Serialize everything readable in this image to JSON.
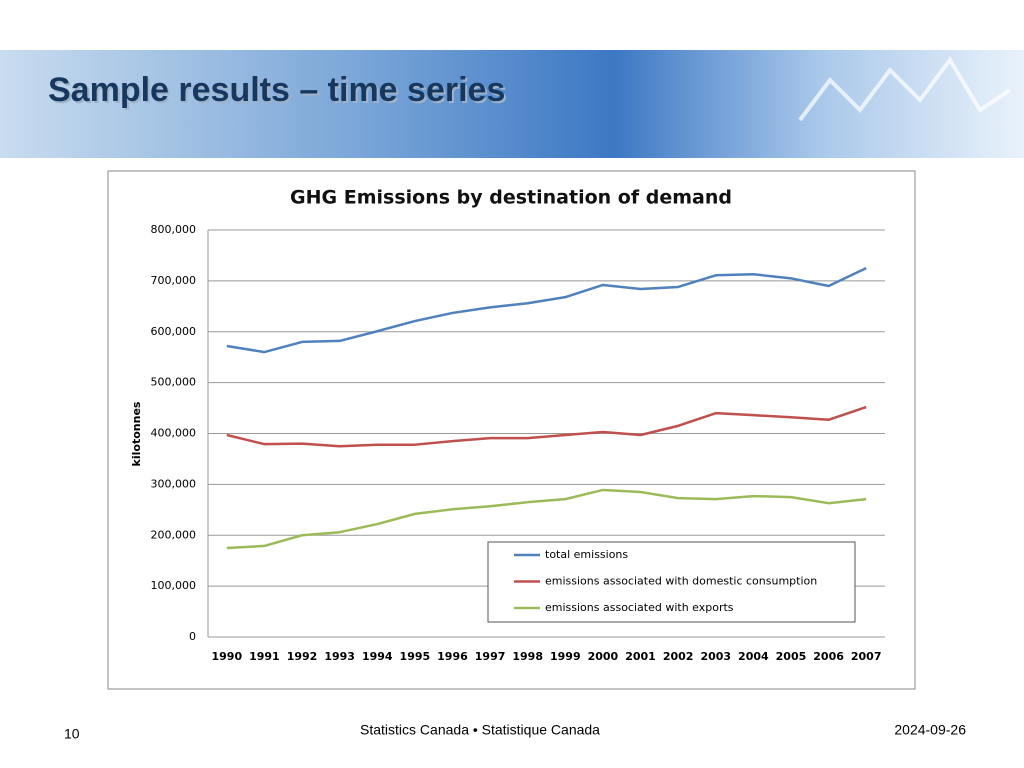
{
  "slide": {
    "title": "Sample results – time series",
    "page_number": "10",
    "footer": "Statistics Canada • Statistique Canada",
    "date": "2024-09-26"
  },
  "chart_data": {
    "type": "line",
    "title": "GHG Emissions by destination of demand",
    "y_label": "kilotonnes",
    "categories": [
      "1990",
      "1991",
      "1992",
      "1993",
      "1994",
      "1995",
      "1996",
      "1997",
      "1998",
      "1999",
      "2000",
      "2001",
      "2002",
      "2003",
      "2004",
      "2005",
      "2006",
      "2007"
    ],
    "series": [
      {
        "name": "total emissions",
        "color": "#4f81bd",
        "values": [
          572000,
          560000,
          580000,
          582000,
          601000,
          621000,
          637000,
          648000,
          656000,
          668000,
          692000,
          684000,
          688000,
          711000,
          713000,
          705000,
          690000,
          725000
        ]
      },
      {
        "name": "emissions associated with domestic consumption",
        "color": "#c0504d",
        "values": [
          397000,
          379000,
          380000,
          375000,
          378000,
          378000,
          385000,
          391000,
          391000,
          397000,
          403000,
          397000,
          415000,
          440000,
          436000,
          432000,
          427000,
          452000
        ]
      },
      {
        "name": "emissions associated with exports",
        "color": "#9bbb59",
        "values": [
          175000,
          179000,
          200000,
          206000,
          222000,
          242000,
          251000,
          257000,
          265000,
          271000,
          289000,
          285000,
          273000,
          271000,
          277000,
          275000,
          263000,
          271000
        ]
      }
    ],
    "ylim": [
      0,
      800000
    ],
    "yticks": [
      0,
      {
        "value": 100000,
        "label": "100,000"
      },
      {
        "value": 200000,
        "label": "200,000"
      },
      {
        "value": 300000,
        "label": "300,000"
      },
      {
        "value": 400000,
        "label": "400,000"
      },
      {
        "value": 500000,
        "label": "500,000"
      },
      {
        "value": 600000,
        "label": "600,000"
      },
      {
        "value": 700000,
        "label": "700,000"
      },
      {
        "value": 800000,
        "label": "800,000"
      }
    ],
    "grid": true,
    "legend": "lower-right"
  }
}
